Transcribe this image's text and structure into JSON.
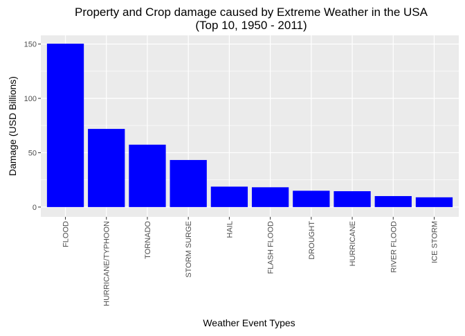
{
  "chart_data": {
    "type": "bar",
    "title": "Property and Crop damage caused by Extreme Weather in the USA",
    "subtitle": "(Top 10, 1950 - 2011)",
    "xlabel": "Weather Event Types",
    "ylabel": "Damage (USD Billions)",
    "categories": [
      "FLOOD",
      "HURRICANE/TYPHOON",
      "TORNADO",
      "STORM SURGE",
      "HAIL",
      "FLASH FLOOD",
      "DROUGHT",
      "HURRICANE",
      "RIVER FLOOD",
      "ICE STORM"
    ],
    "values": [
      150.3,
      71.9,
      57.4,
      43.3,
      18.8,
      18.2,
      15.0,
      14.6,
      10.1,
      8.97
    ],
    "ylim": [
      -9,
      158
    ],
    "yticks": [
      0,
      50,
      100,
      150
    ],
    "grid": true,
    "legend": "none",
    "colors": {
      "bar": "#0000ff",
      "panel": "#ebebeb",
      "grid_major": "#ffffff",
      "tick_text": "#4d4d4d"
    }
  }
}
